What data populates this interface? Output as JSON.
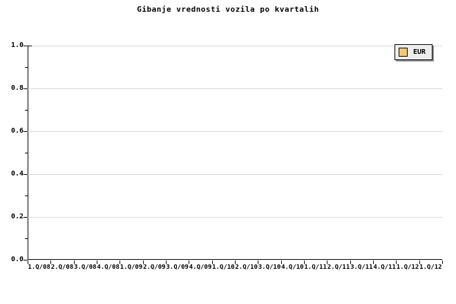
{
  "title": "Gibanje vrednosti vozila po kvartalih",
  "legend": {
    "items": [
      {
        "label": "EUR",
        "swatch_color": "#f8c770"
      }
    ]
  },
  "axes": {
    "y_tick_labels": [
      "1.0",
      "0.8",
      "0.6",
      "0.4",
      "0.2",
      "0.0"
    ],
    "x_tick_labels": [
      "1.Q/08",
      "2.Q/08",
      "3.Q/08",
      "4.Q/08",
      "1.Q/09",
      "2.Q/09",
      "3.Q/09",
      "4.Q/09",
      "1.Q/10",
      "2.Q/10",
      "3.Q/10",
      "4.Q/10",
      "1.Q/11",
      "2.Q/11",
      "3.Q/11",
      "4.Q/11",
      "1.Q/12",
      "1.Q/12"
    ]
  },
  "colors": {
    "background": "#ffffff",
    "axis": "#000000",
    "grid": "#d8d8d8",
    "legend_background": "#ededed",
    "legend_shadow": "#8f8f8f",
    "swatch": "#f8c770",
    "text": "#000000"
  },
  "chart_data": {
    "type": "line",
    "title": "Gibanje vrednosti vozila po kvartalih",
    "categories": [
      "1.Q/08",
      "2.Q/08",
      "3.Q/08",
      "4.Q/08",
      "1.Q/09",
      "2.Q/09",
      "3.Q/09",
      "4.Q/09",
      "1.Q/10",
      "2.Q/10",
      "3.Q/10",
      "4.Q/10",
      "1.Q/11",
      "2.Q/11",
      "3.Q/11",
      "4.Q/11",
      "1.Q/12",
      "1.Q/12"
    ],
    "series": [
      {
        "name": "EUR",
        "values": []
      }
    ],
    "xlabel": "",
    "ylabel": "",
    "ylim": [
      0.0,
      1.0
    ],
    "y_major_ticks": [
      0.0,
      0.2,
      0.4,
      0.6,
      0.8,
      1.0
    ],
    "y_minor_tick_interval": 0.1,
    "grid": "horizontal-major-only",
    "legend_position": "top-right"
  }
}
